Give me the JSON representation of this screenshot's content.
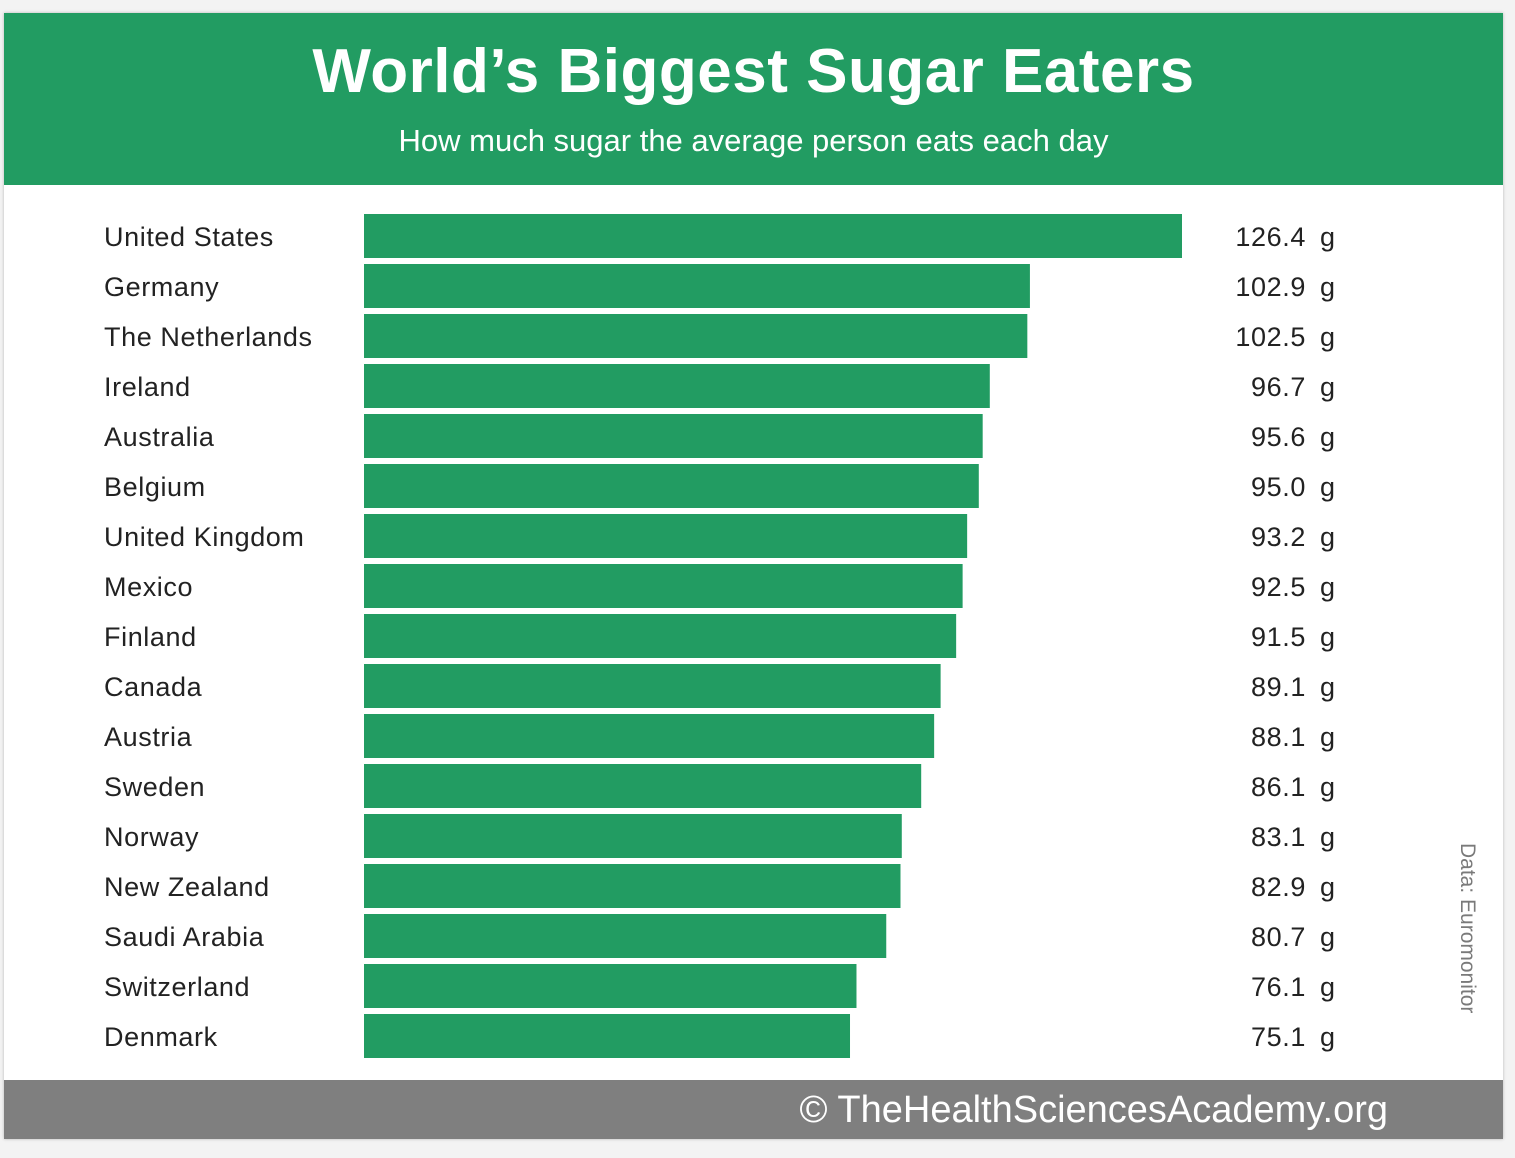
{
  "header": {
    "title": "World’s Biggest Sugar Eaters",
    "subtitle": "How much sugar the average person eats each day"
  },
  "source": "Data: Euromonitor",
  "footer": {
    "credit": "© TheHealthSciencesAcademy.org"
  },
  "colors": {
    "accent": "#229c62",
    "footer": "#7f7f7f"
  },
  "chart_data": {
    "type": "bar",
    "orientation": "horizontal",
    "unit": "g",
    "categories": [
      "United States",
      "Germany",
      "The Netherlands",
      "Ireland",
      "Australia",
      "Belgium",
      "United Kingdom",
      "Mexico",
      "Finland",
      "Canada",
      "Austria",
      "Sweden",
      "Norway",
      "New Zealand",
      "Saudi Arabia",
      "Switzerland",
      "Denmark"
    ],
    "values": [
      126.4,
      102.9,
      102.5,
      96.7,
      95.6,
      95.0,
      93.2,
      92.5,
      91.5,
      89.1,
      88.1,
      86.1,
      83.1,
      82.9,
      80.7,
      76.1,
      75.1
    ],
    "value_labels": [
      "126.4 g",
      "102.9 g",
      "102.5 g",
      "96.7 g",
      "95.6 g",
      "95.0 g",
      "93.2 g",
      "92.5 g",
      "91.5 g",
      "89.1 g",
      "88.1 g",
      "86.1 g",
      "83.1 g",
      "82.9 g",
      "80.7 g",
      "76.1 g",
      "75.1 g"
    ],
    "xlim": [
      0,
      126.4
    ],
    "grid": false,
    "legend": false
  }
}
